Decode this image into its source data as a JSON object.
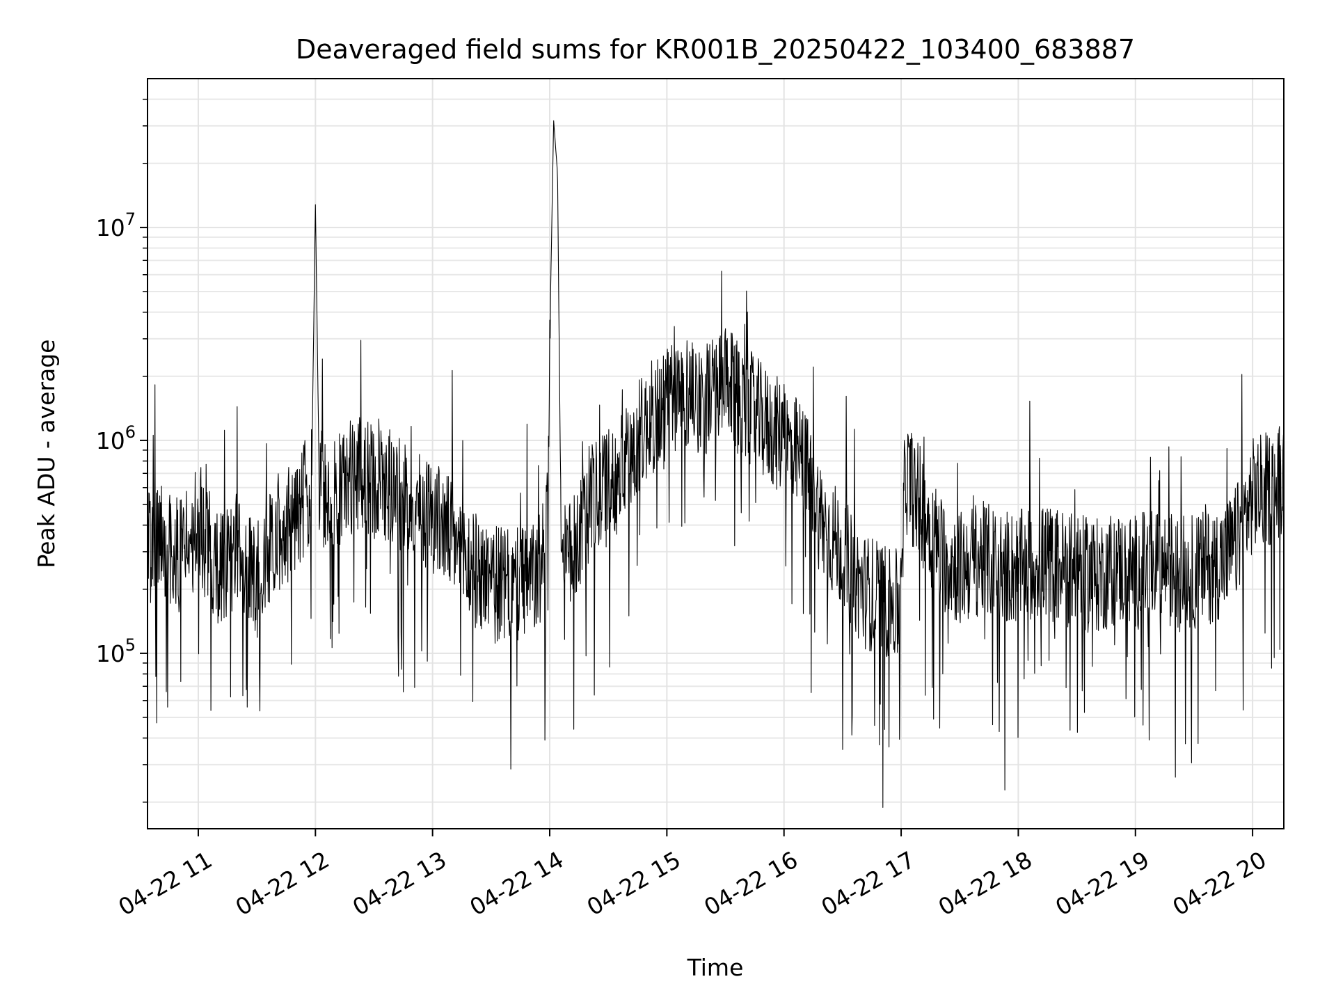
{
  "chart_data": {
    "type": "line",
    "title": "Deaveraged field sums for KR001B_20250422_103400_683887",
    "xlabel": "Time",
    "ylabel": "Peak ADU - average",
    "y_scale": "log",
    "ylim": [
      15000,
      50000000
    ],
    "xlim": [
      "2025-04-22 10:34",
      "2025-04-22 20:16"
    ],
    "x_ticks": [
      "04-22 11",
      "04-22 12",
      "04-22 13",
      "04-22 14",
      "04-22 15",
      "04-22 16",
      "04-22 17",
      "04-22 18",
      "04-22 19",
      "04-22 20"
    ],
    "y_ticks": [
      {
        "base": "10",
        "exp": "5",
        "value": 100000
      },
      {
        "base": "10",
        "exp": "6",
        "value": 1000000
      },
      {
        "base": "10",
        "exp": "7",
        "value": 10000000
      }
    ],
    "grid": true,
    "line_color": "#000000",
    "series": [
      {
        "x": [
          "2025-04-22 10:34",
          "2025-04-22 10:40",
          "2025-04-22 10:50",
          "2025-04-22 11:00",
          "2025-04-22 11:10",
          "2025-04-22 11:20",
          "2025-04-22 11:30",
          "2025-04-22 11:40",
          "2025-04-22 11:50",
          "2025-04-22 11:58",
          "2025-04-22 12:00",
          "2025-04-22 12:02",
          "2025-04-22 12:10",
          "2025-04-22 12:20",
          "2025-04-22 12:30",
          "2025-04-22 12:40",
          "2025-04-22 12:50",
          "2025-04-22 13:00",
          "2025-04-22 13:10",
          "2025-04-22 13:20",
          "2025-04-22 13:30",
          "2025-04-22 13:40",
          "2025-04-22 13:50",
          "2025-04-22 13:58",
          "2025-04-22 14:02",
          "2025-04-22 14:04",
          "2025-04-22 14:06",
          "2025-04-22 14:10",
          "2025-04-22 14:20",
          "2025-04-22 14:30",
          "2025-04-22 14:40",
          "2025-04-22 14:50",
          "2025-04-22 15:00",
          "2025-04-22 15:10",
          "2025-04-22 15:20",
          "2025-04-22 15:30",
          "2025-04-22 15:40",
          "2025-04-22 15:50",
          "2025-04-22 16:00",
          "2025-04-22 16:10",
          "2025-04-22 16:20",
          "2025-04-22 16:30",
          "2025-04-22 16:40",
          "2025-04-22 16:50",
          "2025-04-22 17:00",
          "2025-04-22 17:02",
          "2025-04-22 17:10",
          "2025-04-22 17:20",
          "2025-04-22 17:30",
          "2025-04-22 17:40",
          "2025-04-22 17:50",
          "2025-04-22 18:00",
          "2025-04-22 18:10",
          "2025-04-22 18:20",
          "2025-04-22 18:30",
          "2025-04-22 18:40",
          "2025-04-22 18:50",
          "2025-04-22 19:00",
          "2025-04-22 19:10",
          "2025-04-22 19:20",
          "2025-04-22 19:30",
          "2025-04-22 19:40",
          "2025-04-22 19:50",
          "2025-04-22 20:00",
          "2025-04-22 20:10",
          "2025-04-22 20:16"
        ],
        "values": [
          300000,
          350000,
          280000,
          400000,
          250000,
          300000,
          220000,
          350000,
          450000,
          600000,
          13000000,
          600000,
          550000,
          700000,
          650000,
          600000,
          500000,
          450000,
          350000,
          250000,
          220000,
          200000,
          220000,
          250000,
          32000000,
          18000000,
          250000,
          280000,
          500000,
          600000,
          800000,
          1200000,
          1500000,
          1700000,
          1600000,
          1800000,
          1500000,
          1200000,
          1000000,
          800000,
          400000,
          300000,
          200000,
          180000,
          160000,
          700000,
          500000,
          300000,
          250000,
          280000,
          260000,
          250000,
          270000,
          260000,
          240000,
          230000,
          250000,
          240000,
          260000,
          250000,
          240000,
          260000,
          300000,
          550000,
          600000,
          700000
        ]
      }
    ]
  }
}
